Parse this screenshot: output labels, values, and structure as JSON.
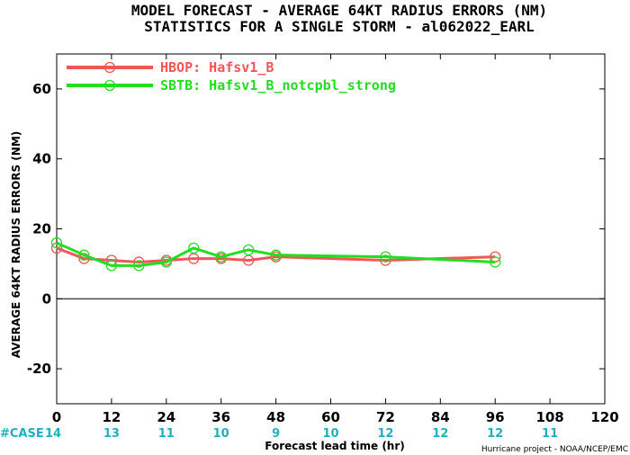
{
  "chart_data": {
    "type": "line",
    "title": "MODEL FORECAST - AVERAGE 64KT RADIUS ERRORS (NM)",
    "subtitle": "STATISTICS FOR A SINGLE STORM - al062022_EARL",
    "xlabel": "Forecast lead time (hr)",
    "ylabel": "AVERAGE 64KT RADIUS ERRORS (NM)",
    "xlim": [
      0,
      120
    ],
    "ylim": [
      -30,
      70
    ],
    "x_ticks": [
      0,
      12,
      24,
      36,
      48,
      60,
      72,
      84,
      96,
      108,
      120
    ],
    "y_ticks": [
      -20,
      0,
      20,
      40,
      60
    ],
    "legend_position": "top-left",
    "series": [
      {
        "name": "HBOP: Hafsv1_B",
        "color": "#f25656",
        "x": [
          0,
          6,
          12,
          18,
          24,
          30,
          36,
          42,
          48,
          72,
          96
        ],
        "y": [
          14.5,
          11.5,
          11,
          10.5,
          11,
          11.5,
          11.5,
          11,
          12,
          11,
          12
        ]
      },
      {
        "name": "SBTB: Hafsv1_B_notcpbl_strong",
        "color": "#22dd22",
        "x": [
          0,
          6,
          12,
          18,
          24,
          30,
          36,
          42,
          48,
          72,
          96
        ],
        "y": [
          16,
          12.5,
          9.5,
          9.5,
          10.5,
          14.5,
          12,
          14,
          12.5,
          12,
          10.5
        ]
      }
    ],
    "case_label": "#CASE",
    "case_counts": [
      {
        "x": 0,
        "n": "14"
      },
      {
        "x": 12,
        "n": "13"
      },
      {
        "x": 24,
        "n": "11"
      },
      {
        "x": 36,
        "n": "10"
      },
      {
        "x": 48,
        "n": "9"
      },
      {
        "x": 60,
        "n": "10"
      },
      {
        "x": 72,
        "n": "12"
      },
      {
        "x": 84,
        "n": "12"
      },
      {
        "x": 96,
        "n": "12"
      },
      {
        "x": 108,
        "n": "11"
      }
    ],
    "credit": "Hurricane project - NOAA/NCEP/EMC",
    "zero_line": true,
    "grid": false
  }
}
